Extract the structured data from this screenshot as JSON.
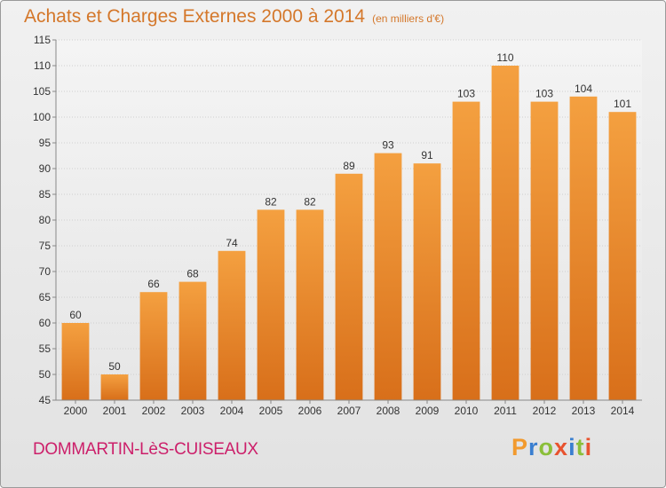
{
  "header": {
    "title": "Achats et Charges Externes 2000 à 2014",
    "subtitle": "(en milliers d'€)"
  },
  "footer": {
    "commune": "DOMMARTIN-LèS-CUISEAUX",
    "logo": "Proxiti",
    "logo_colors": [
      "#f29a2e",
      "#3a7fd0",
      "#8bbf3a",
      "#e8532f",
      "#3a7fd0",
      "#8bbf3a",
      "#e8532f"
    ]
  },
  "chart_data": {
    "type": "bar",
    "categories": [
      "2000",
      "2001",
      "2002",
      "2003",
      "2004",
      "2005",
      "2006",
      "2007",
      "2008",
      "2009",
      "2010",
      "2011",
      "2012",
      "2013",
      "2014"
    ],
    "values": [
      60,
      50,
      66,
      68,
      74,
      82,
      82,
      89,
      93,
      91,
      103,
      110,
      103,
      104,
      101
    ],
    "ylim": [
      45,
      115
    ],
    "yticks": [
      45,
      50,
      55,
      60,
      65,
      70,
      75,
      80,
      85,
      90,
      95,
      100,
      105,
      110,
      115
    ],
    "grid": true,
    "bar_color": "#f4a040",
    "bar_color_dark": "#d86f1a"
  }
}
